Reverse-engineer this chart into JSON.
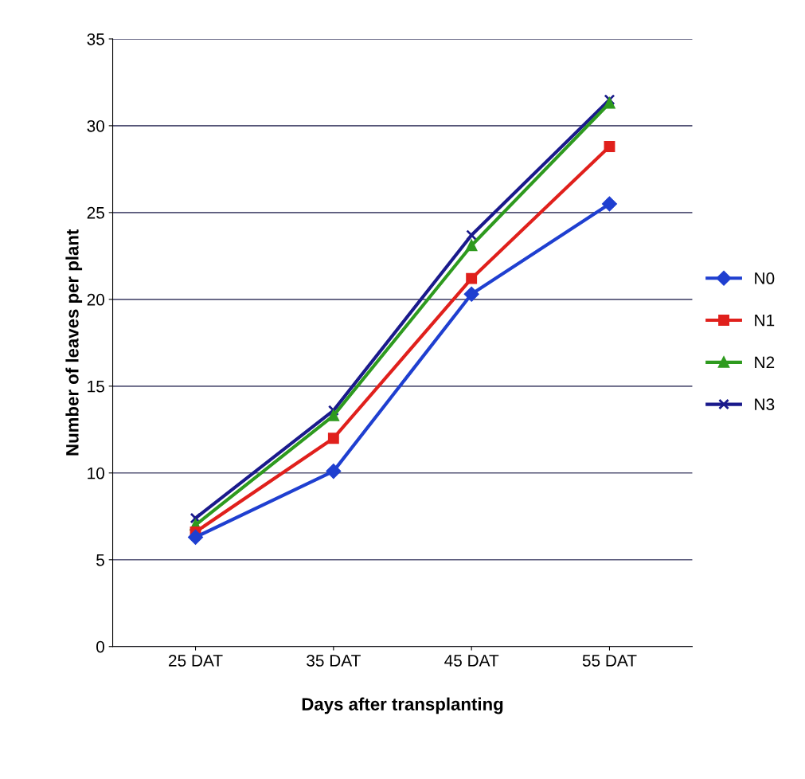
{
  "chart_data": {
    "type": "line",
    "xlabel": "Days after transplanting",
    "ylabel": "Number of leaves per plant",
    "categories": [
      "25 DAT",
      "35 DAT",
      "45 DAT",
      "55 DAT"
    ],
    "series": [
      {
        "name": "N0",
        "color": "#1f3fd0",
        "marker": "diamond",
        "values": [
          6.3,
          10.1,
          20.3,
          25.5
        ]
      },
      {
        "name": "N1",
        "color": "#e0201c",
        "marker": "square",
        "values": [
          6.6,
          12.0,
          21.2,
          28.8
        ]
      },
      {
        "name": "N2",
        "color": "#2e9a1e",
        "marker": "triangle",
        "values": [
          7.0,
          13.3,
          23.1,
          31.3
        ]
      },
      {
        "name": "N3",
        "color": "#1a1a8c",
        "marker": "cross",
        "values": [
          7.4,
          13.6,
          23.7,
          31.5
        ]
      }
    ],
    "ylim": [
      0,
      35
    ],
    "yticks": [
      0,
      5,
      10,
      15,
      20,
      25,
      30,
      35
    ],
    "grid": "y",
    "legend": "right",
    "line_style": "solid"
  }
}
